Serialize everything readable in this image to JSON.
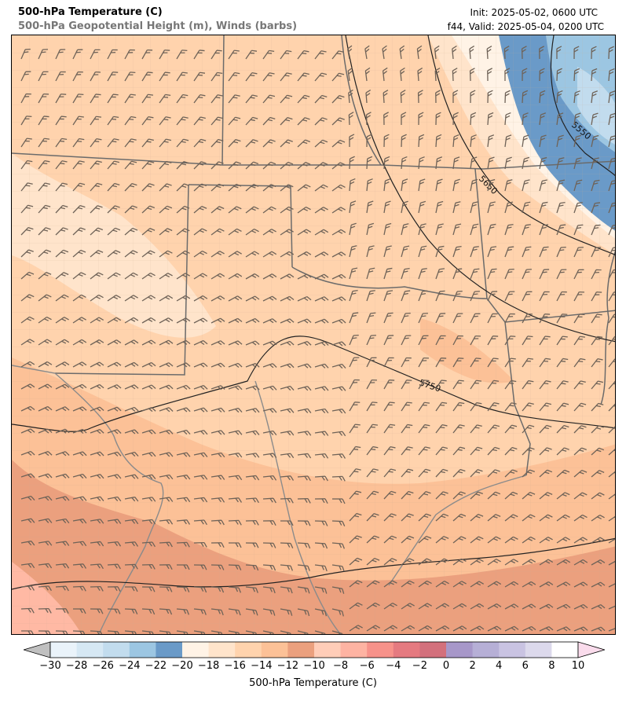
{
  "header": {
    "title": "500-hPa Temperature (C)",
    "subtitle": "500-hPa Geopotential Height (m), Winds (barbs)",
    "init": "Init: 2025-05-02, 0600 UTC",
    "valid": "f44, Valid: 2025-05-04, 0200 UTC"
  },
  "contours": {
    "labels": [
      "5550",
      "5650",
      "5750"
    ]
  },
  "colorbar": {
    "label": "500-hPa Temperature (C)",
    "ticks": [
      "−30",
      "−28",
      "−26",
      "−24",
      "−22",
      "−20",
      "−18",
      "−16",
      "−14",
      "−12",
      "−10",
      "−8",
      "−6",
      "−4",
      "−2",
      "0",
      "2",
      "4",
      "6",
      "8",
      "10"
    ],
    "colors": [
      "#eaf3fa",
      "#d6e8f4",
      "#c2dcee",
      "#9cc6e2",
      "#6a9ac8",
      "#fff3e6",
      "#ffe4cb",
      "#ffd3ad",
      "#fcc197",
      "#eba07e",
      "#ffcdb8",
      "#feb3a2",
      "#f7928a",
      "#e57a80",
      "#d3707c",
      "#a797c9",
      "#b6afd6",
      "#c9c3e2",
      "#dcd9ec",
      "#ffffff"
    ],
    "under_color": "#c0c0c0",
    "over_color": "#fadcec"
  }
}
